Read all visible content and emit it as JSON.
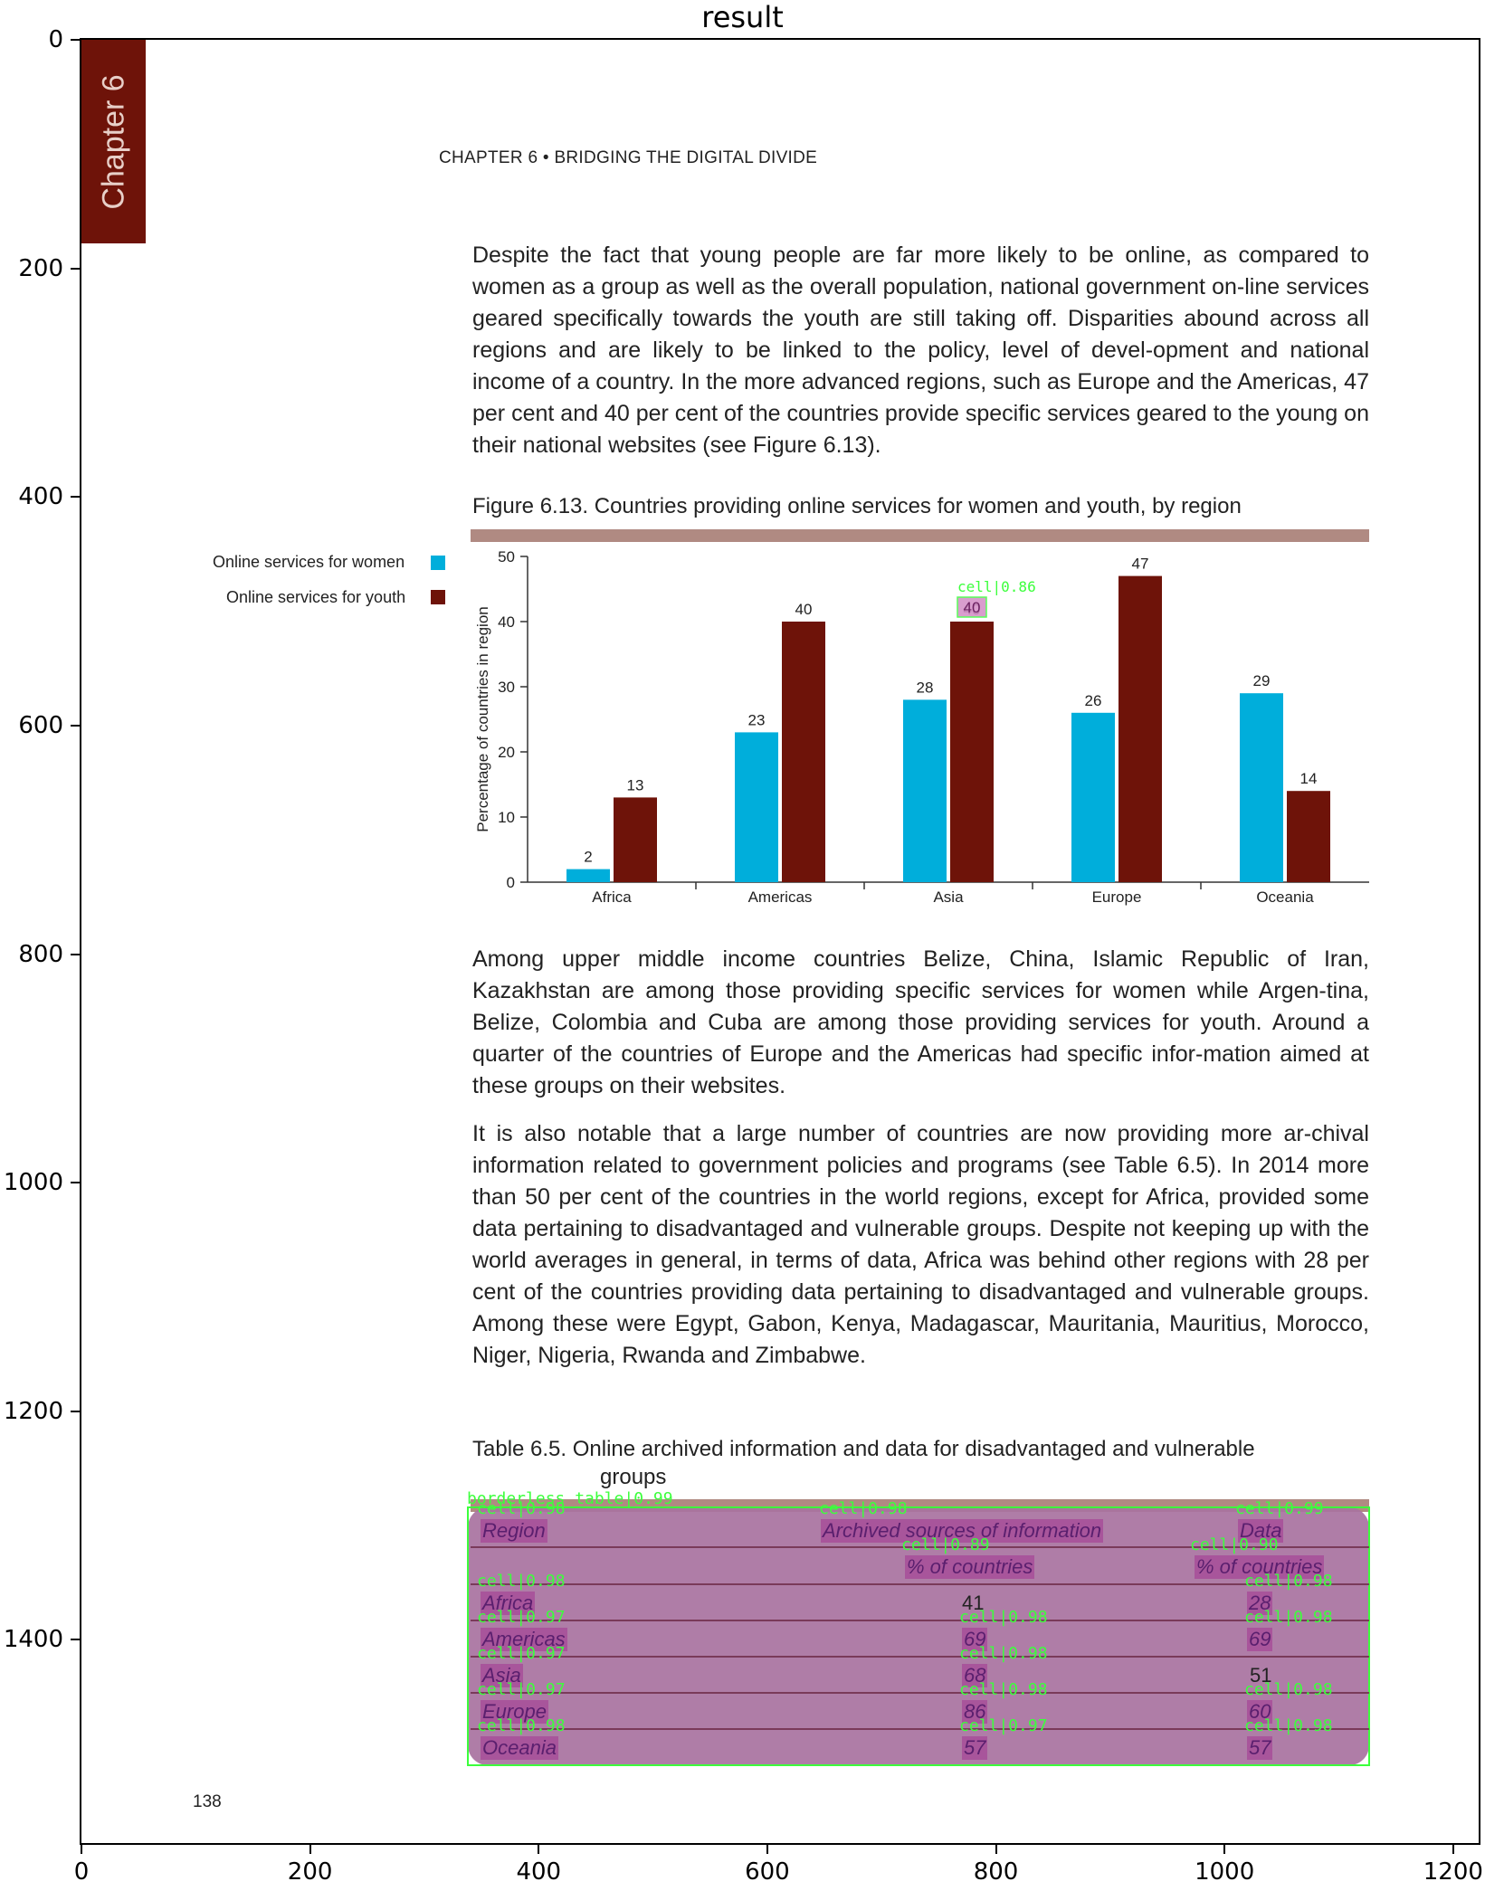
{
  "figure_title": "result",
  "axes": {
    "y_ticks": [
      "0",
      "200",
      "400",
      "600",
      "800",
      "1000",
      "1200",
      "1400"
    ],
    "x_ticks": [
      "0",
      "200",
      "400",
      "600",
      "800",
      "1000",
      "1200"
    ]
  },
  "page": {
    "chapter_tab": "Chapter 6",
    "running_head": "CHAPTER 6 • BRIDGING THE DIGITAL DIVIDE",
    "paragraph1": "Despite the fact that young people are far more likely to be online, as compared to women as a group as well as the overall population, national government on-line services geared specifically towards the youth are still taking off. Disparities abound across all regions and are likely to be linked to the policy, level of devel-opment and national income of a country. In the more advanced regions, such as Europe and the Americas, 47 per cent and 40 per cent of the countries provide specific services geared to the young on their national websites (see Figure 6.13).",
    "figure_caption": "Figure 6.13.   Countries providing online services for women and youth, by region",
    "paragraph2": "Among upper middle income countries Belize, China, Islamic Republic of Iran, Kazakhstan are among those providing specific services for women while Argen-tina, Belize, Colombia and Cuba are among those providing services for youth. Around a quarter of the countries of Europe and the Americas had specific infor-mation aimed at these groups on their websites.",
    "paragraph3": "It is also notable that a large number of countries are now providing more ar-chival information related to government policies and programs (see Table 6.5). In 2014 more than 50 per cent of the countries in the world regions, except for Africa, provided some data pertaining to disadvantaged and vulnerable groups. Despite not keeping up with the world averages in general, in terms of data, Africa was behind other regions with 28 per cent of the countries providing data pertaining to disadvantaged and vulnerable groups. Among these were Egypt, Gabon, Kenya, Madagascar, Mauritania, Mauritius, Morocco, Niger, Nigeria, Rwanda and Zimbabwe.",
    "table_caption_line1": "Table 6.5.   Online archived information and data for disadvantaged and vulnerable",
    "table_caption_line2": "groups",
    "page_number": "138"
  },
  "chart_data": {
    "type": "bar",
    "categories": [
      "Africa",
      "Americas",
      "Asia",
      "Europe",
      "Oceania"
    ],
    "series": [
      {
        "name": "Online services for women",
        "color": "#00aedb",
        "values": [
          2,
          23,
          28,
          26,
          29
        ]
      },
      {
        "name": "Online services for youth",
        "color": "#6e1309",
        "values": [
          13,
          40,
          40,
          47,
          14
        ]
      }
    ],
    "ylabel": "Percentage of countries in region",
    "ylim": [
      0,
      50
    ],
    "yticks": [
      0,
      10,
      20,
      30,
      40,
      50
    ],
    "legend_position": "left",
    "annotations": [
      {
        "text": "cell|0.86",
        "target": "Asia youth value label"
      }
    ]
  },
  "table": {
    "detection_label": "borderless_table|0.99",
    "headers": {
      "region": "Region",
      "archived": "Archived sources of information",
      "data": "Data"
    },
    "subheaders": {
      "archived": "% of countries",
      "data": "% of countries"
    },
    "rows": [
      {
        "region": "Africa",
        "archived": "41",
        "data": "28"
      },
      {
        "region": "Americas",
        "archived": "69",
        "data": "69"
      },
      {
        "region": "Asia",
        "archived": "68",
        "data": "51"
      },
      {
        "region": "Europe",
        "archived": "86",
        "data": "60"
      },
      {
        "region": "Oceania",
        "archived": "57",
        "data": "57"
      }
    ],
    "cell_labels": {
      "h1": "cell|0.98",
      "h2": "cell|0.98",
      "h3": "cell|0.99",
      "s1": "cell|0.89",
      "s2": "cell|0.90",
      "r1": "cell|0.98",
      "r2": "cell|0.98",
      "r3": "cell|0.97",
      "r4": "cell|0.98",
      "r5": "cell|0.98",
      "r6": "cell|0.97",
      "r7": "cell|0.98",
      "r8": "cell|0.97",
      "r9": "cell|0.98",
      "r10": "cell|0.98",
      "r11": "cell|0.98",
      "r12": "cell|0.97"
    }
  },
  "colors": {
    "chapter_tab": "#6e1309",
    "table_overlay": "#a8729f",
    "detection_box": "#3cff3c"
  }
}
